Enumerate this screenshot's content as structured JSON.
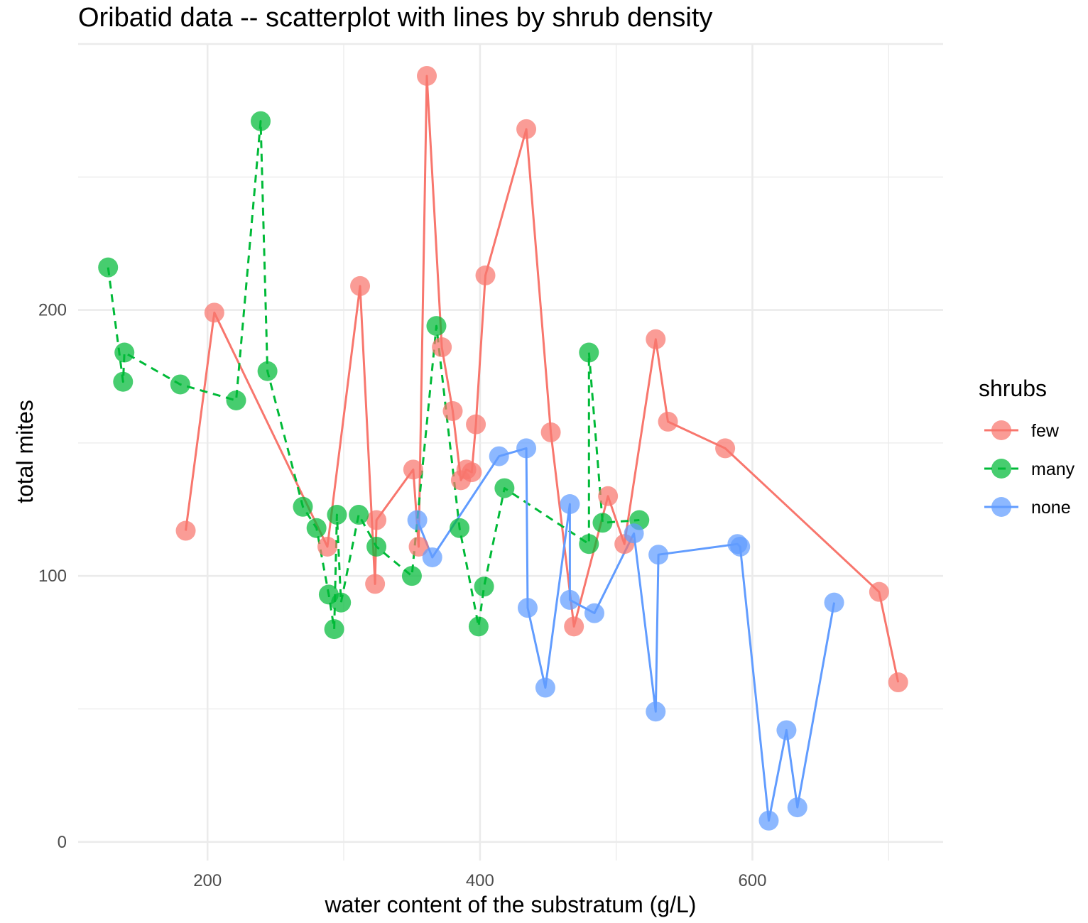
{
  "chart_data": {
    "type": "scatter",
    "title": "Oribatid data -- scatterplot with lines by shrub density",
    "xlabel": "water content of the substratum (g/L)",
    "ylabel": "total mites",
    "xlim": [
      105,
      740
    ],
    "ylim": [
      -7,
      300
    ],
    "x_ticks": [
      200,
      400,
      600
    ],
    "y_ticks": [
      0,
      100,
      200
    ],
    "grid": true,
    "legend": {
      "title": "shrubs",
      "position": "right"
    },
    "series": [
      {
        "name": "few",
        "color": "#F8766D",
        "line_style": "solid",
        "points": [
          [
            184,
            117
          ],
          [
            205,
            199
          ],
          [
            288,
            111
          ],
          [
            312,
            209
          ],
          [
            323,
            97
          ],
          [
            324,
            121
          ],
          [
            351,
            140
          ],
          [
            355,
            111
          ],
          [
            361,
            288
          ],
          [
            372,
            186
          ],
          [
            380,
            162
          ],
          [
            386,
            136
          ],
          [
            390,
            140
          ],
          [
            394,
            139
          ],
          [
            397,
            157
          ],
          [
            404,
            213
          ],
          [
            434,
            268
          ],
          [
            452,
            154
          ],
          [
            469,
            81
          ],
          [
            494,
            130
          ],
          [
            506,
            112
          ],
          [
            529,
            189
          ],
          [
            538,
            158
          ],
          [
            580,
            148
          ],
          [
            693,
            94
          ],
          [
            707,
            60
          ]
        ]
      },
      {
        "name": "many",
        "color": "#00BA38",
        "line_style": "dashed",
        "points": [
          [
            127,
            216
          ],
          [
            138,
            173
          ],
          [
            139,
            184
          ],
          [
            180,
            172
          ],
          [
            221,
            166
          ],
          [
            239,
            271
          ],
          [
            244,
            177
          ],
          [
            270,
            126
          ],
          [
            280,
            118
          ],
          [
            289,
            93
          ],
          [
            293,
            80
          ],
          [
            295,
            123
          ],
          [
            298,
            90
          ],
          [
            311,
            123
          ],
          [
            324,
            111
          ],
          [
            350,
            100
          ],
          [
            368,
            194
          ],
          [
            385,
            118
          ],
          [
            399,
            81
          ],
          [
            403,
            96
          ],
          [
            418,
            133
          ],
          [
            480,
            112
          ],
          [
            480,
            184
          ],
          [
            490,
            120
          ],
          [
            517,
            121
          ]
        ]
      },
      {
        "name": "none",
        "color": "#619CFF",
        "line_style": "solid",
        "points": [
          [
            354,
            121
          ],
          [
            365,
            107
          ],
          [
            414,
            145
          ],
          [
            434,
            148
          ],
          [
            435,
            88
          ],
          [
            448,
            58
          ],
          [
            466,
            127
          ],
          [
            466,
            91
          ],
          [
            484,
            86
          ],
          [
            513,
            116
          ],
          [
            529,
            49
          ],
          [
            531,
            108
          ],
          [
            589,
            112
          ],
          [
            591,
            111
          ],
          [
            612,
            8
          ],
          [
            625,
            42
          ],
          [
            633,
            13
          ],
          [
            660,
            90
          ]
        ]
      }
    ]
  }
}
